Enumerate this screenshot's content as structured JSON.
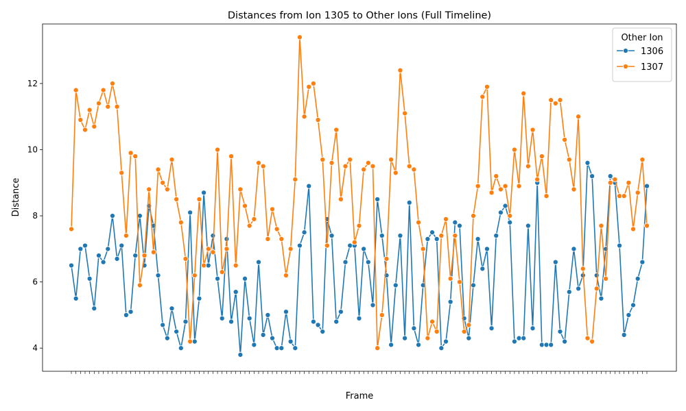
{
  "chart_data": {
    "type": "line",
    "title": "Distances from Ion 1305 to Other Ions (Full Timeline)",
    "xlabel": "Frame",
    "ylabel": "Distance",
    "ylim": [
      3.3,
      13.8
    ],
    "yticks": [
      4,
      6,
      8,
      10,
      12
    ],
    "grid": false,
    "legend": {
      "title": "Other Ion",
      "placement": "top-right"
    },
    "series": [
      {
        "name": "1306",
        "color": "#1f77b4",
        "values": [
          6.5,
          5.5,
          7.0,
          7.1,
          6.1,
          5.2,
          6.8,
          6.6,
          7.0,
          8.0,
          6.7,
          7.1,
          5.0,
          5.1,
          6.8,
          8.0,
          6.5,
          8.3,
          7.7,
          6.2,
          4.7,
          4.3,
          5.2,
          4.5,
          4.0,
          4.8,
          8.1,
          4.2,
          5.5,
          8.7,
          6.5,
          7.4,
          6.1,
          4.9,
          7.3,
          4.8,
          5.7,
          3.8,
          6.1,
          4.9,
          4.1,
          6.6,
          4.4,
          5.0,
          4.3,
          4.0,
          4.0,
          5.1,
          4.2,
          4.0,
          7.1,
          7.5,
          8.9,
          4.8,
          4.7,
          4.5,
          7.9,
          7.4,
          4.8,
          5.1,
          6.6,
          7.1,
          7.1,
          4.9,
          7.0,
          6.6,
          5.3,
          8.5,
          7.4,
          6.2,
          4.1,
          5.9,
          7.4,
          4.3,
          8.4,
          4.6,
          4.1,
          5.9,
          7.3,
          7.5,
          7.3,
          4.0,
          4.2,
          5.4,
          7.8,
          7.7,
          4.9,
          4.3,
          5.9,
          7.3,
          6.4,
          7.0,
          4.6,
          7.4,
          8.1,
          8.3,
          7.8,
          4.2,
          4.3,
          4.3,
          7.7,
          4.6,
          9.0,
          4.1,
          4.1,
          4.1,
          6.6,
          4.5,
          4.2,
          5.7,
          7.0,
          5.8,
          6.2,
          9.6,
          9.2,
          6.2,
          5.5,
          7.0,
          9.2,
          9.0,
          7.1,
          4.4,
          5.0,
          5.3,
          6.1,
          6.6,
          8.9
        ]
      },
      {
        "name": "1307",
        "color": "#ff7f0e",
        "values": [
          7.6,
          11.8,
          10.9,
          10.6,
          11.2,
          10.7,
          11.4,
          11.8,
          11.3,
          12.0,
          11.3,
          9.3,
          7.4,
          9.9,
          9.8,
          5.9,
          6.8,
          8.8,
          6.9,
          9.4,
          9.0,
          8.8,
          9.7,
          8.5,
          7.8,
          6.7,
          4.2,
          6.2,
          8.5,
          6.5,
          7.0,
          6.9,
          10.0,
          6.3,
          7.0,
          9.8,
          6.5,
          8.8,
          8.3,
          7.7,
          7.9,
          9.6,
          9.5,
          7.3,
          8.2,
          7.6,
          7.3,
          6.2,
          7.0,
          9.1,
          13.4,
          11.0,
          11.9,
          12.0,
          10.9,
          9.7,
          7.1,
          9.6,
          10.6,
          8.5,
          9.5,
          9.7,
          7.2,
          7.7,
          9.4,
          9.6,
          9.5,
          4.0,
          5.0,
          6.7,
          9.7,
          9.3,
          12.4,
          11.1,
          9.5,
          9.4,
          7.8,
          7.0,
          4.3,
          4.8,
          4.5,
          7.4,
          7.9,
          6.1,
          7.4,
          6.0,
          4.5,
          4.7,
          8.0,
          8.9,
          11.6,
          11.9,
          8.7,
          9.2,
          8.8,
          8.9,
          8.0,
          10.0,
          8.9,
          11.7,
          9.5,
          10.6,
          9.1,
          9.8,
          8.6,
          11.5,
          11.4,
          11.5,
          10.3,
          9.7,
          8.8,
          11.0,
          6.4,
          4.3,
          4.2,
          5.8,
          7.7,
          6.1,
          9.0,
          9.1,
          8.6,
          8.6,
          9.0,
          7.6,
          8.7,
          9.7,
          7.7
        ]
      }
    ]
  }
}
